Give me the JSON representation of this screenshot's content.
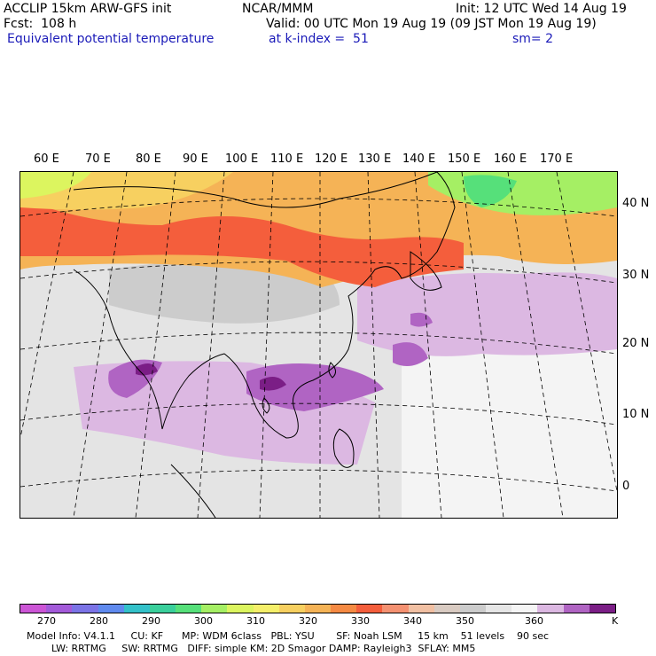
{
  "header": {
    "line1_left": "ACCLIP 15km ARW-GFS init",
    "line1_center": "NCAR/MMM",
    "line1_right": "Init: 12 UTC Wed 14 Aug 19",
    "line2_left": "Fcst:  108 h",
    "line2_right": "Valid: 00 UTC Mon 19 Aug 19 (09 JST Mon 19 Aug 19)",
    "line3_left": "Equivalent potential temperature",
    "line3_center": "at k-index =  51",
    "line3_right": "sm= 2"
  },
  "map": {
    "lon_labels": [
      "60 E",
      "70 E",
      "80 E",
      "90 E",
      "100 E",
      "110 E",
      "120 E",
      "130 E",
      "140 E",
      "150 E",
      "160 E",
      "170 E"
    ],
    "lat_labels": [
      "40 N",
      "30 N",
      "20 N",
      "10 N",
      "0"
    ]
  },
  "colorbar": {
    "colors": [
      "#cc55d6",
      "#a35ad9",
      "#7b73e6",
      "#5f8aee",
      "#33c1c9",
      "#3acf9b",
      "#56e07a",
      "#a5ef64",
      "#dcf55f",
      "#f5ef6a",
      "#f7d060",
      "#f5b356",
      "#f58a43",
      "#f45e3c",
      "#f49171",
      "#f1c0a3",
      "#d9cbc2",
      "#cccccc",
      "#e6e6e6",
      "#f5f5f5",
      "#dcb8e2",
      "#b064c3",
      "#7b1e86"
    ],
    "tick_labels": [
      "270",
      "280",
      "290",
      "300",
      "310",
      "320",
      "330",
      "340",
      "350",
      "360"
    ],
    "unit": "K"
  },
  "model_info": {
    "line1": "Model Info: V4.1.1     CU: KF      MP: WDM 6class   PBL: YSU       SF: Noah LSM     15 km    51 levels    90 sec",
    "line2": "        LW: RRTMG     SW: RRTMG   DIFF: simple KM: 2D Smagor DAMP: Rayleigh3  SFLAY: MM5"
  }
}
